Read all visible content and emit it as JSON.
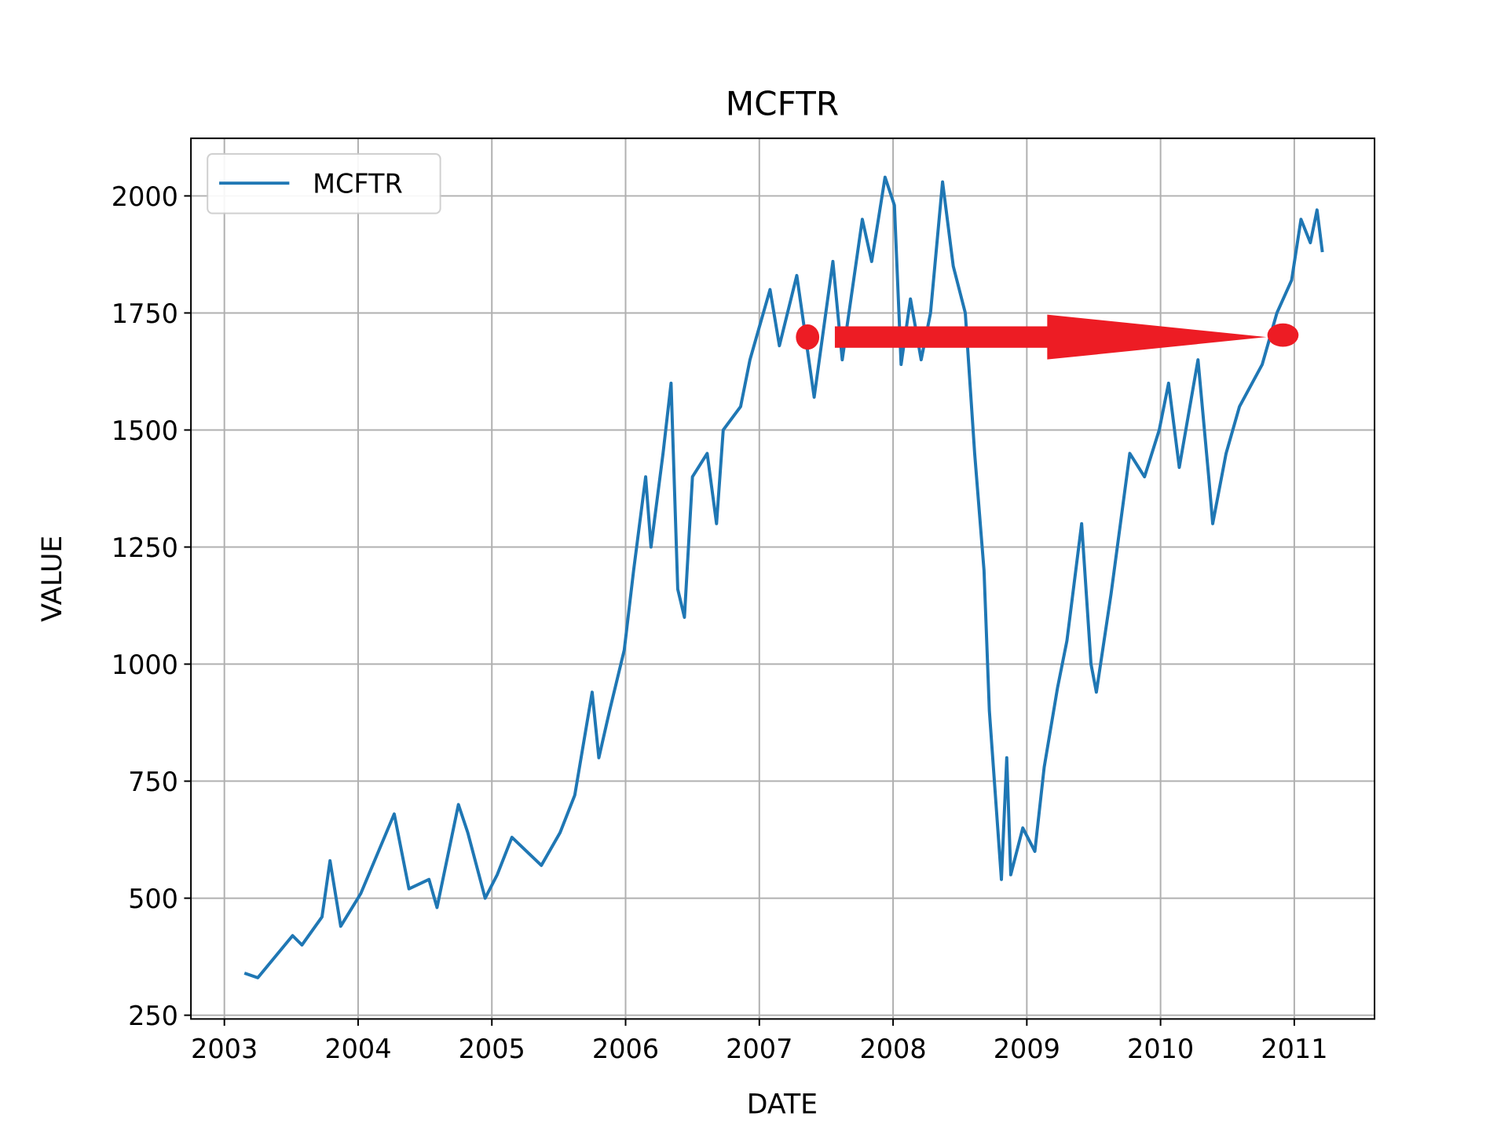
{
  "chart_data": {
    "type": "line",
    "title": "MCFTR",
    "xlabel": "DATE",
    "ylabel": "VALUE",
    "x": [
      2003.15,
      2003.25,
      2003.51,
      2003.58,
      2003.73,
      2003.79,
      2003.87,
      2004.02,
      2004.27,
      2004.38,
      2004.53,
      2004.59,
      2004.75,
      2004.82,
      2004.95,
      2005.04,
      2005.15,
      2005.37,
      2005.51,
      2005.62,
      2005.75,
      2005.8,
      2005.88,
      2005.99,
      2006.06,
      2006.15,
      2006.19,
      2006.28,
      2006.34,
      2006.39,
      2006.44,
      2006.5,
      2006.61,
      2006.68,
      2006.73,
      2006.86,
      2006.93,
      2007.08,
      2007.15,
      2007.28,
      2007.41,
      2007.55,
      2007.62,
      2007.77,
      2007.84,
      2007.94,
      2008.01,
      2008.06,
      2008.13,
      2008.21,
      2008.28,
      2008.37,
      2008.45,
      2008.54,
      2008.61,
      2008.68,
      2008.72,
      2008.77,
      2008.81,
      2008.85,
      2008.88,
      2008.97,
      2009.06,
      2009.13,
      2009.23,
      2009.3,
      2009.41,
      2009.48,
      2009.52,
      2009.63,
      2009.77,
      2009.88,
      2009.99,
      2010.06,
      2010.14,
      2010.28,
      2010.36,
      2010.39,
      2010.49,
      2010.59,
      2010.76,
      2010.87,
      2010.98,
      2011.05,
      2011.12,
      2011.17,
      2011.21
    ],
    "series": [
      {
        "name": "MCFTR",
        "color": "#1f77b4",
        "values": [
          340,
          330,
          420,
          400,
          460,
          580,
          440,
          510,
          680,
          520,
          540,
          480,
          700,
          640,
          500,
          550,
          630,
          570,
          640,
          720,
          940,
          800,
          900,
          1030,
          1200,
          1400,
          1250,
          1450,
          1600,
          1160,
          1100,
          1400,
          1450,
          1300,
          1500,
          1550,
          1650,
          1800,
          1680,
          1830,
          1570,
          1860,
          1650,
          1950,
          1860,
          2040,
          1980,
          1640,
          1780,
          1650,
          1750,
          2030,
          1850,
          1750,
          1450,
          1200,
          900,
          700,
          540,
          800,
          550,
          650,
          600,
          780,
          950,
          1050,
          1300,
          1000,
          940,
          1150,
          1450,
          1400,
          1500,
          1600,
          1420,
          1650,
          1400,
          1300,
          1450,
          1550,
          1640,
          1750,
          1820,
          1950,
          1900,
          1970,
          1880
        ]
      }
    ],
    "xlim": [
      2002.75,
      2011.6
    ],
    "xticks": [
      2003,
      2004,
      2005,
      2006,
      2007,
      2008,
      2009,
      2010,
      2011
    ],
    "ylim": [
      242,
      2123
    ],
    "yticks": [
      250,
      500,
      750,
      1000,
      1250,
      1500,
      1750,
      2000
    ],
    "grid": true,
    "legend": "upper left"
  }
}
